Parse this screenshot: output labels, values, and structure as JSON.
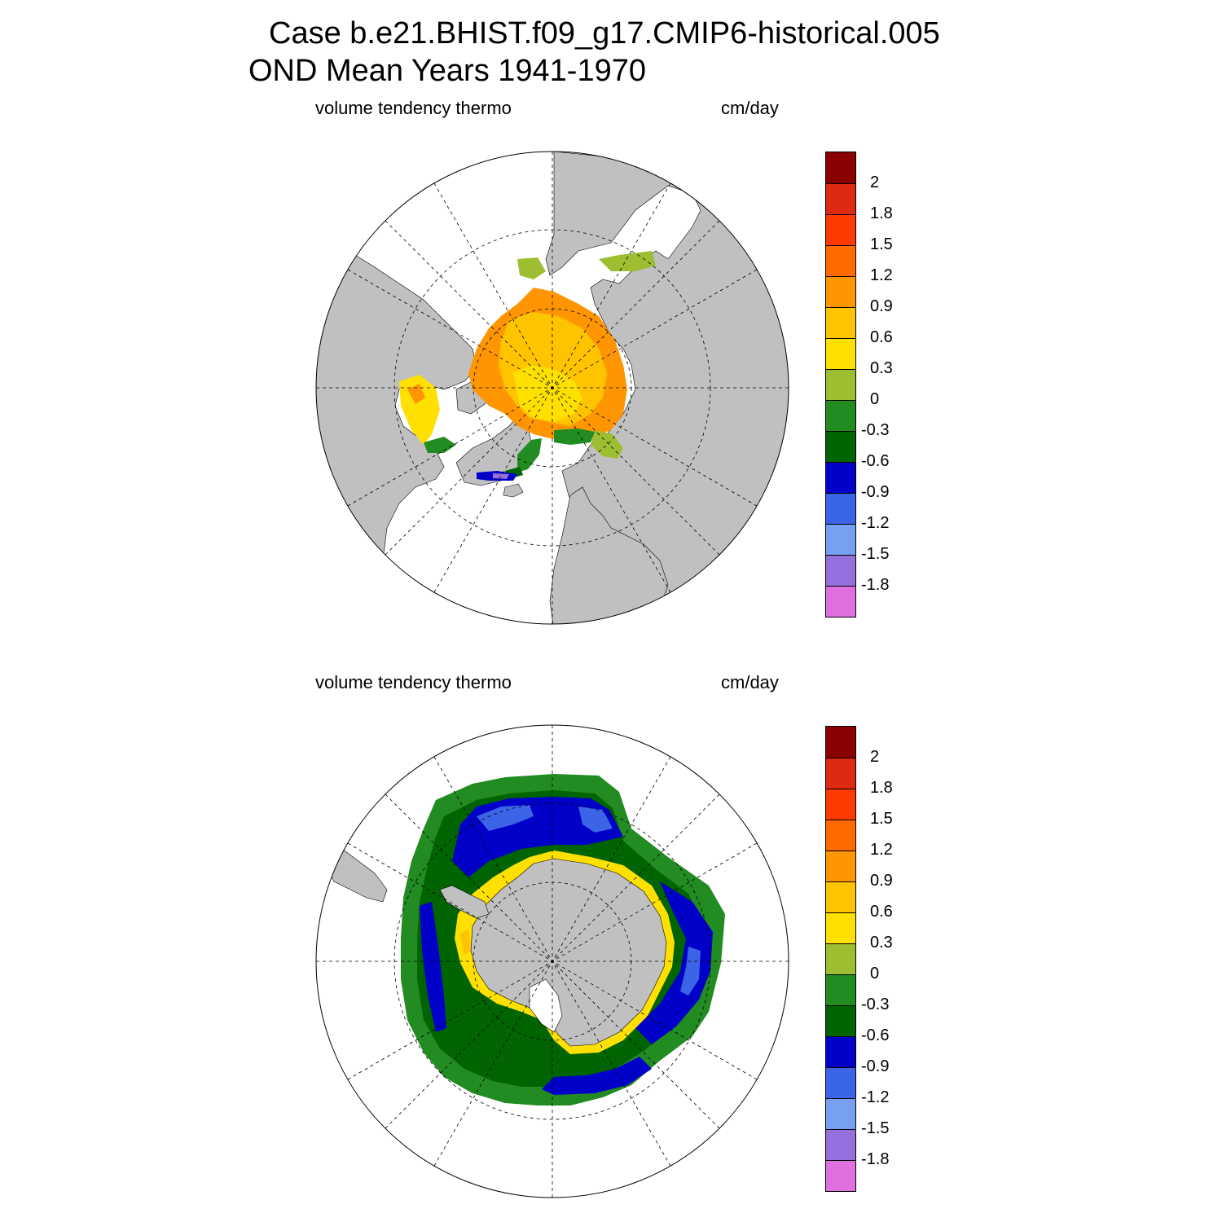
{
  "title": {
    "line1": "Case b.e21.BHIST.f09_g17.CMIP6-historical.005",
    "line2": "OND Mean   Years 1941-1970"
  },
  "panels": [
    {
      "id": "north",
      "variable_label": "volume tendency thermo",
      "units_label": "cm/day",
      "hemisphere": "Arctic (north polar stereographic)"
    },
    {
      "id": "south",
      "variable_label": "volume tendency thermo",
      "units_label": "cm/day",
      "hemisphere": "Antarctic (south polar stereographic)"
    }
  ],
  "colorbar": {
    "labels": [
      "2",
      "1.8",
      "1.5",
      "1.2",
      "0.9",
      "0.6",
      "0.3",
      "0",
      "-0.3",
      "-0.6",
      "-0.9",
      "-1.2",
      "-1.5",
      "-1.8"
    ],
    "colors": [
      "#8b0000",
      "#dd2a10",
      "#ff3a00",
      "#ff6a00",
      "#ff9500",
      "#ffc400",
      "#ffe000",
      "#9dbe30",
      "#228b22",
      "#006400",
      "#0000c8",
      "#3c64e6",
      "#78a0f0",
      "#9370db",
      "#e070e0"
    ]
  },
  "colors": {
    "land": "#c0c0c0",
    "ocean": "#ffffff",
    "grid": "#000000"
  }
}
